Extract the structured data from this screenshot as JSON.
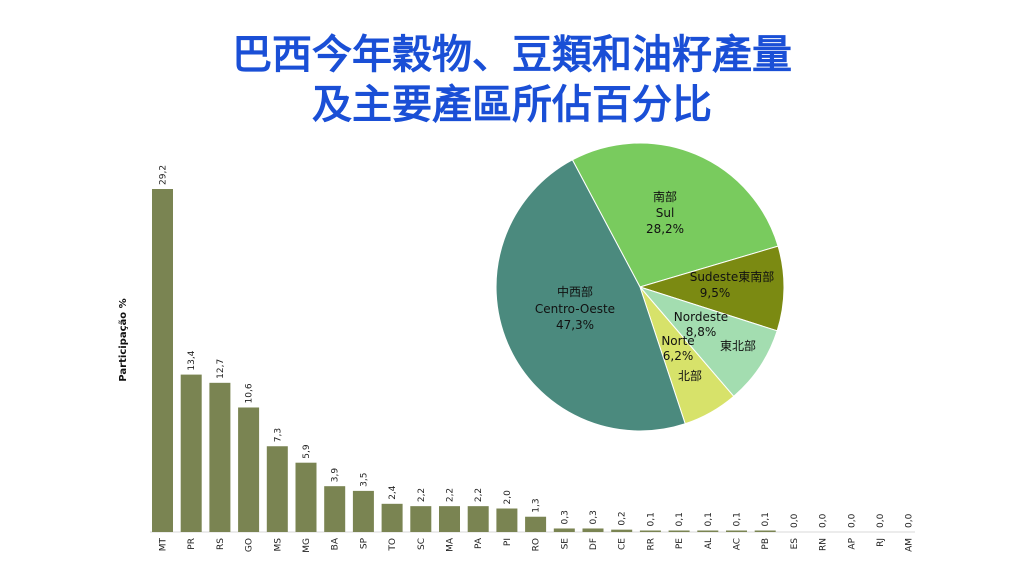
{
  "title": {
    "line1": "巴西今年穀物、豆類和油籽產量",
    "line2": "及主要產區所佔百分比"
  },
  "chart_data": [
    {
      "type": "bar",
      "ylabel": "Participação %",
      "categories": [
        "MT",
        "PR",
        "RS",
        "GO",
        "MS",
        "MG",
        "BA",
        "SP",
        "TO",
        "SC",
        "MA",
        "PA",
        "PI",
        "RO",
        "SE",
        "DF",
        "CE",
        "RR",
        "PE",
        "AL",
        "AC",
        "PB",
        "ES",
        "RN",
        "AP",
        "RJ",
        "AM"
      ],
      "values": [
        29.2,
        13.4,
        12.7,
        10.6,
        7.3,
        5.9,
        3.9,
        3.5,
        2.4,
        2.2,
        2.2,
        2.2,
        2.0,
        1.3,
        0.3,
        0.3,
        0.2,
        0.1,
        0.1,
        0.1,
        0.1,
        0.1,
        0.0,
        0.0,
        0.0,
        0.0,
        0.0
      ],
      "value_labels": [
        "29,2",
        "13,4",
        "12,7",
        "10,6",
        "7,3",
        "5,9",
        "3,9",
        "3,5",
        "2,4",
        "2,2",
        "2,2",
        "2,2",
        "2,0",
        "1,3",
        "0,3",
        "0,3",
        "0,2",
        "0,1",
        "0,1",
        "0,1",
        "0,1",
        "0,1",
        "0,0",
        "0,0",
        "0,0",
        "0,0",
        "0,0"
      ],
      "ylim": [
        0,
        30
      ],
      "bar_color": "#7a8452"
    },
    {
      "type": "pie",
      "slices": [
        {
          "name_zh": "南部",
          "name": "Sul",
          "pct_label": "28,2%",
          "value": 28.2,
          "color": "#79cb5e"
        },
        {
          "name_zh": "東南部",
          "name": "Sudeste",
          "pct_label": "9,5%",
          "value": 9.5,
          "color": "#7b8a12"
        },
        {
          "name_zh": "東北部",
          "name": "Nordeste",
          "pct_label": "8,8%",
          "value": 8.8,
          "color": "#a3ddb0"
        },
        {
          "name_zh": "北部",
          "name": "Norte",
          "pct_label": "6,2%",
          "value": 6.2,
          "color": "#d7e26a"
        },
        {
          "name_zh": "中西部",
          "name": "Centro-Oeste",
          "pct_label": "47,3%",
          "value": 47.3,
          "color": "#4b8a7e"
        }
      ]
    }
  ]
}
